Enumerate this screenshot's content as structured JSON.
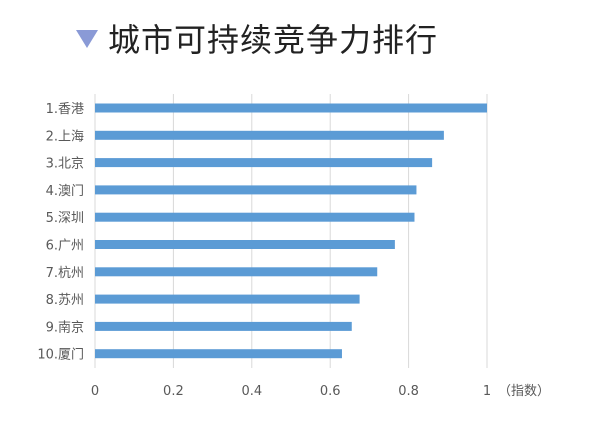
{
  "chart_data": {
    "type": "bar",
    "orientation": "horizontal",
    "title": "城市可持续竞争力排行",
    "categories": [
      "1.香港",
      "2.上海",
      "3.北京",
      "4.澳门",
      "5.深圳",
      "6.广州",
      "7.杭州",
      "8.苏州",
      "9.南京",
      "10.厦门"
    ],
    "values": [
      1.0,
      0.89,
      0.86,
      0.82,
      0.815,
      0.765,
      0.72,
      0.675,
      0.655,
      0.63
    ],
    "xlim": [
      0,
      1
    ],
    "xticks": [
      "0",
      "0.2",
      "0.4",
      "0.6",
      "0.8",
      "1"
    ],
    "xlabel": "（指数）",
    "grid": true,
    "bar_color": "#5b9bd5",
    "title_icon": "triangle-down-icon",
    "title_icon_color": "#8a9ad6"
  }
}
